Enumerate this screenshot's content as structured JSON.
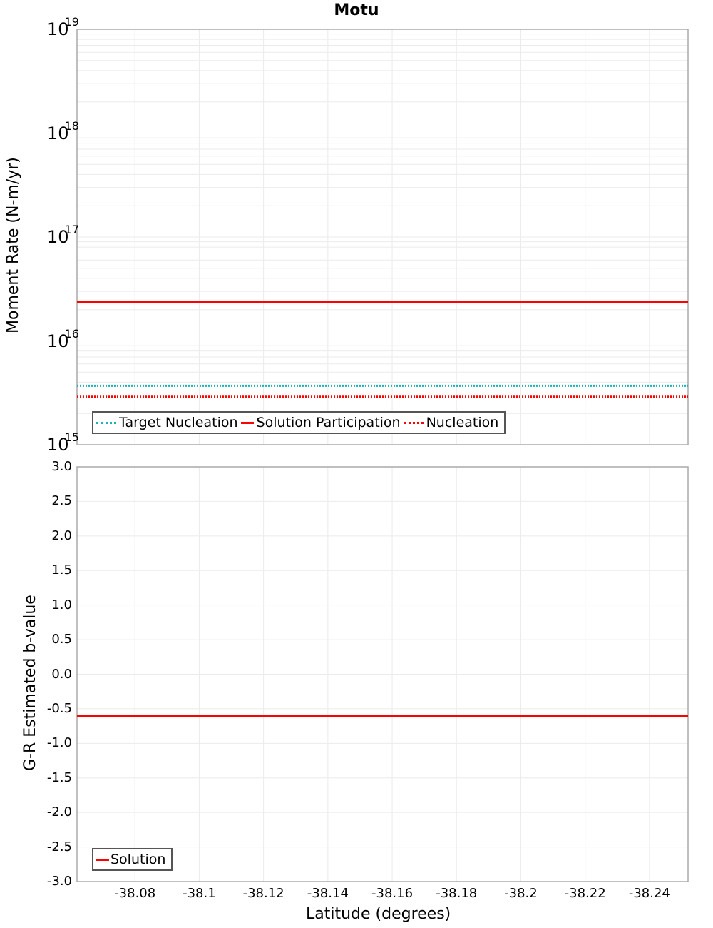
{
  "title": "Motu",
  "chart_data": [
    {
      "type": "line",
      "title": "Motu",
      "xlabel": "Latitude (degrees)",
      "ylabel": "Moment Rate (N-m/yr)",
      "yscale": "log",
      "ylim": [
        1000000000000000.0,
        1e+19
      ],
      "xlim": [
        -38.062,
        -38.252
      ],
      "x_reversed": true,
      "grid": true,
      "legend_position": "lower-left",
      "y_ticks": [
        {
          "base": "10",
          "exp": "19"
        },
        {
          "base": "10",
          "exp": "18"
        },
        {
          "base": "10",
          "exp": "17"
        },
        {
          "base": "10",
          "exp": "16"
        },
        {
          "base": "10",
          "exp": "15"
        }
      ],
      "series": [
        {
          "name": "Target Nucleation",
          "style": "dotted",
          "color": "#1ab2b2",
          "x": [
            -38.062,
            -38.252
          ],
          "values": [
            3700000000000000.0,
            3700000000000000.0
          ]
        },
        {
          "name": "Solution Participation",
          "style": "solid",
          "color": "#ff0000",
          "x": [
            -38.062,
            -38.252
          ],
          "values": [
            2.37e+16,
            2.37e+16
          ]
        },
        {
          "name": "Nucleation",
          "style": "dotted",
          "color": "#ff0000",
          "x": [
            -38.062,
            -38.252
          ],
          "values": [
            2900000000000000.0,
            2900000000000000.0
          ]
        }
      ]
    },
    {
      "type": "line",
      "xlabel": "Latitude (degrees)",
      "ylabel": "G-R Estimated b-value",
      "ylim": [
        -3.0,
        3.0
      ],
      "xlim": [
        -38.062,
        -38.252
      ],
      "x_reversed": true,
      "grid": true,
      "legend_position": "lower-left",
      "y_ticks": [
        "3.0",
        "2.5",
        "2.0",
        "1.5",
        "1.0",
        "0.5",
        "0.0",
        "-0.5",
        "-1.0",
        "-1.5",
        "-2.0",
        "-2.5",
        "-3.0"
      ],
      "x_ticks": [
        "-38.08",
        "-38.1",
        "-38.12",
        "-38.14",
        "-38.16",
        "-38.18",
        "-38.2",
        "-38.22",
        "-38.24"
      ],
      "series": [
        {
          "name": "Solution",
          "style": "solid",
          "color": "#ff0000",
          "x": [
            -38.062,
            -38.252
          ],
          "values": [
            -0.6,
            -0.6
          ]
        }
      ]
    }
  ],
  "labels": {
    "top_ylabel": "Moment Rate (N-m/yr)",
    "bottom_ylabel": "G-R Estimated b-value",
    "xlabel": "Latitude (degrees)"
  },
  "top_legend": [
    "Target Nucleation",
    "Solution Participation",
    "Nucleation"
  ],
  "bottom_legend": [
    "Solution"
  ]
}
